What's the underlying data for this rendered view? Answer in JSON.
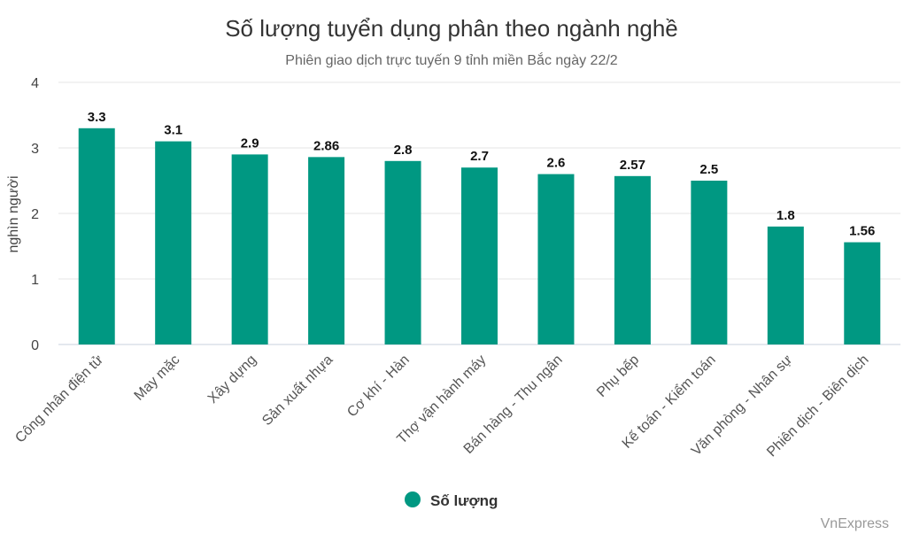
{
  "chart_data": {
    "type": "bar",
    "title": "Số lượng tuyển dụng phân theo ngành nghề",
    "subtitle": "Phiên giao dịch trực tuyến 9 tỉnh miền Bắc ngày 22/2",
    "ylabel": "nghìn người",
    "xlabel": "",
    "ylim": [
      0,
      4
    ],
    "yticks": [
      0,
      1,
      2,
      3,
      4
    ],
    "grid": true,
    "legend_position": "bottom-center",
    "categories": [
      "Công nhân điện tử",
      "May mặc",
      "Xây dựng",
      "Sản xuất nhựa",
      "Cơ khí - Hàn",
      "Thợ vận hành máy",
      "Bán hàng - Thu ngân",
      "Phụ bếp",
      "Kế toán - Kiểm toán",
      "Văn phòng - Nhân sự",
      "Phiên dịch - Biên dịch"
    ],
    "series": [
      {
        "name": "Số lượng",
        "color": "#009882",
        "values": [
          3.3,
          3.1,
          2.9,
          2.86,
          2.8,
          2.7,
          2.6,
          2.57,
          2.5,
          1.8,
          1.56
        ],
        "labels": [
          "3.3",
          "3.1",
          "2.9",
          "2.86",
          "2.8",
          "2.7",
          "2.6",
          "2.57",
          "2.5",
          "1.8",
          "1.56"
        ]
      }
    ],
    "credit": "VnExpress"
  }
}
